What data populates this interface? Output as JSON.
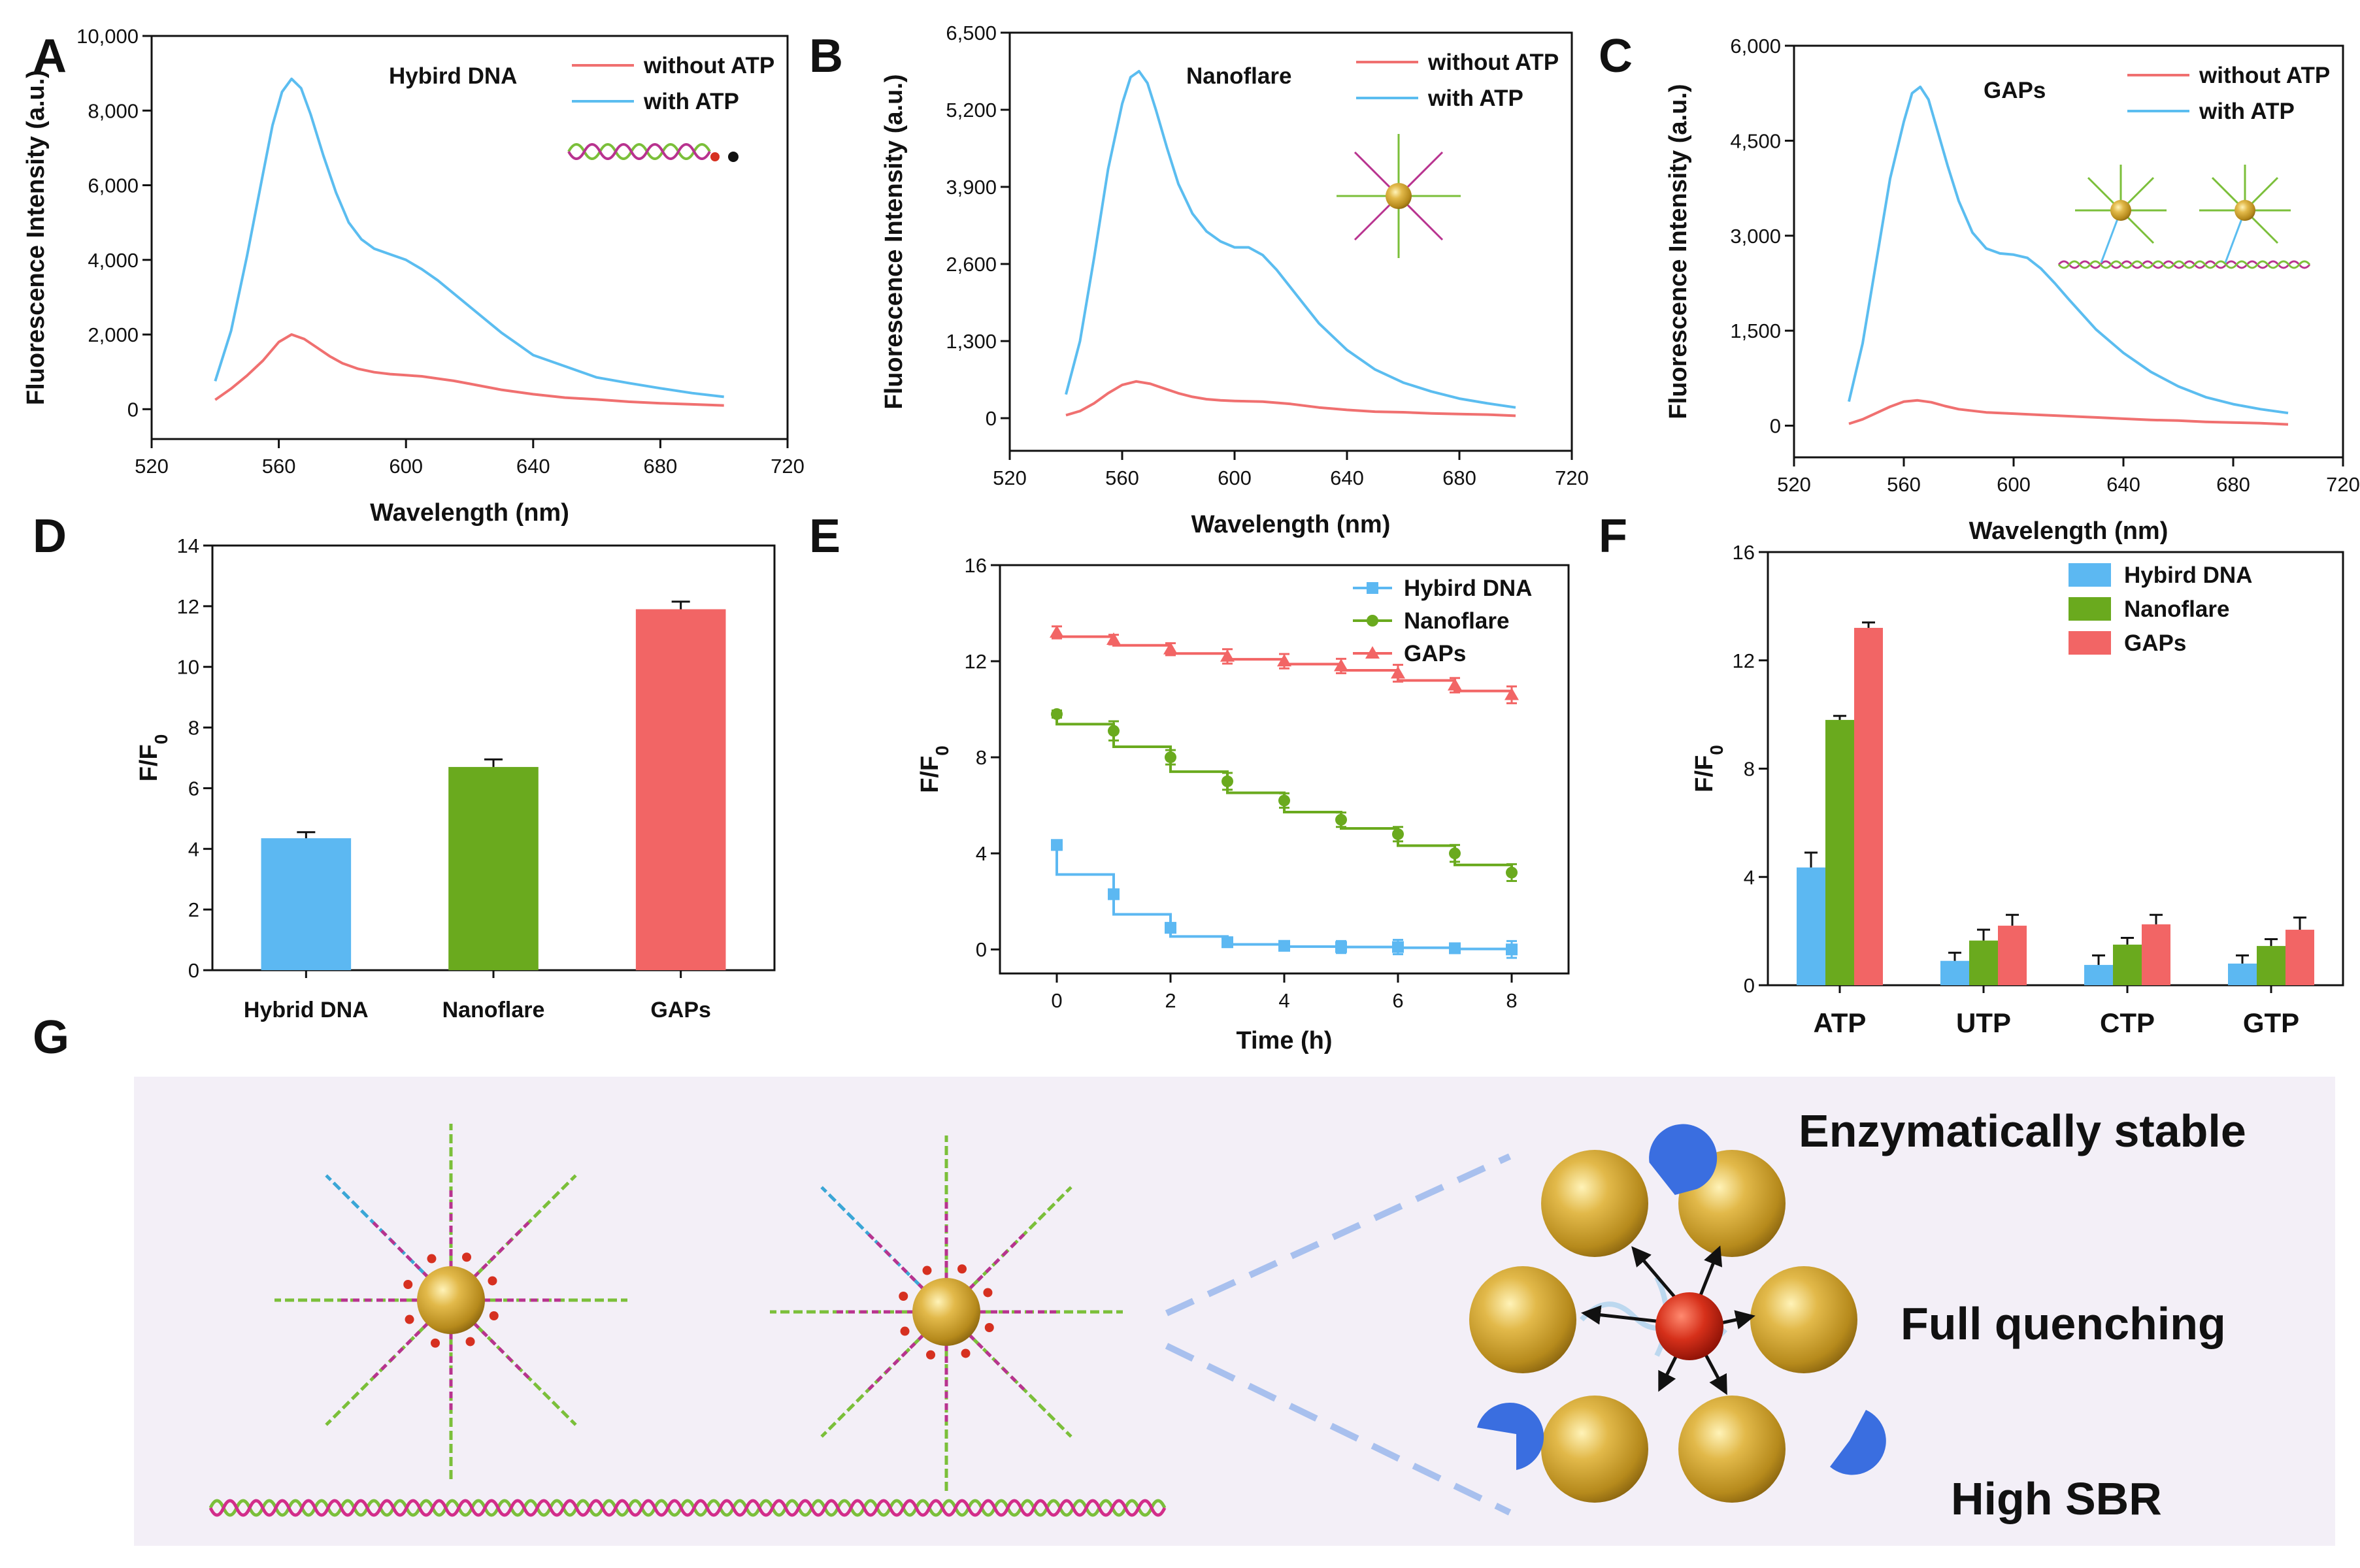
{
  "panels": {
    "A": {
      "letter": "A",
      "label": "Hybird DNA"
    },
    "B": {
      "letter": "B",
      "label": "Nanoflare"
    },
    "C": {
      "letter": "C",
      "label": "GAPs"
    },
    "D": {
      "letter": "D"
    },
    "E": {
      "letter": "E"
    },
    "F": {
      "letter": "F"
    },
    "G": {
      "letter": "G"
    }
  },
  "schematic": {
    "feature_1": "Enzymatically stable",
    "feature_2": "Full quenching",
    "feature_3": "High SBR"
  },
  "colors": {
    "without_atp": "#f07070",
    "with_atp": "#5bbdf0",
    "hybrid_dna": "#5cb8f2",
    "nanoflare": "#6aaa1e",
    "gaps": "#f26565",
    "gold": "#c8a030",
    "bg_panel_g": "#f3eff7"
  },
  "chart_data": [
    {
      "id": "A",
      "type": "line",
      "xlabel": "Wavelength (nm)",
      "ylabel": "Fluorescence Intensity (a.u.)",
      "xlim": [
        520,
        720
      ],
      "ylim": [
        -800,
        10000
      ],
      "xticks": [
        520,
        560,
        600,
        640,
        680,
        720
      ],
      "xtick_labels": [
        "520",
        "560",
        "600",
        "640",
        "680",
        "720"
      ],
      "yticks": [
        0,
        2000,
        4000,
        6000,
        8000,
        10000
      ],
      "ytick_labels": [
        "0",
        "2,000",
        "4,000",
        "6,000",
        "8,000",
        "10,000"
      ],
      "legend_position": "top-right",
      "series": [
        {
          "name": "without ATP",
          "color": "#f07070",
          "x": [
            540,
            545,
            550,
            555,
            560,
            564,
            568,
            572,
            576,
            580,
            585,
            590,
            595,
            600,
            605,
            610,
            615,
            620,
            625,
            630,
            640,
            650,
            660,
            670,
            680,
            690,
            700
          ],
          "y": [
            250,
            550,
            900,
            1300,
            1800,
            2000,
            1880,
            1650,
            1420,
            1230,
            1080,
            990,
            940,
            910,
            880,
            820,
            760,
            680,
            600,
            520,
            400,
            310,
            260,
            200,
            160,
            130,
            100
          ]
        },
        {
          "name": "with ATP",
          "color": "#5bbdf0",
          "x": [
            540,
            545,
            550,
            555,
            558,
            561,
            564,
            567,
            570,
            574,
            578,
            582,
            586,
            590,
            595,
            600,
            605,
            610,
            615,
            620,
            625,
            630,
            635,
            640,
            650,
            660,
            670,
            680,
            690,
            700
          ],
          "y": [
            750,
            2100,
            4100,
            6300,
            7600,
            8500,
            8850,
            8600,
            7900,
            6800,
            5800,
            5000,
            4550,
            4300,
            4150,
            4000,
            3750,
            3450,
            3100,
            2750,
            2400,
            2050,
            1750,
            1450,
            1150,
            850,
            700,
            560,
            430,
            330
          ]
        }
      ]
    },
    {
      "id": "B",
      "type": "line",
      "xlabel": "Wavelength (nm)",
      "ylabel": "Fluorescence Intensity (a.u.)",
      "xlim": [
        520,
        720
      ],
      "ylim": [
        -550,
        6500
      ],
      "xticks": [
        520,
        560,
        600,
        640,
        680,
        720
      ],
      "xtick_labels": [
        "520",
        "560",
        "600",
        "640",
        "680",
        "720"
      ],
      "yticks": [
        0,
        1300,
        2600,
        3900,
        5200,
        6500
      ],
      "ytick_labels": [
        "0",
        "1,300",
        "2,600",
        "3,900",
        "5,200",
        "6,500"
      ],
      "legend_position": "top-right",
      "series": [
        {
          "name": "without ATP",
          "color": "#f07070",
          "x": [
            540,
            545,
            550,
            555,
            560,
            565,
            570,
            575,
            580,
            585,
            590,
            595,
            600,
            610,
            620,
            630,
            640,
            650,
            660,
            670,
            680,
            690,
            700
          ],
          "y": [
            50,
            120,
            250,
            420,
            560,
            620,
            580,
            500,
            420,
            360,
            320,
            300,
            290,
            280,
            240,
            180,
            140,
            110,
            100,
            80,
            70,
            60,
            40
          ]
        },
        {
          "name": "with ATP",
          "color": "#5bbdf0",
          "x": [
            540,
            545,
            550,
            555,
            560,
            563,
            566,
            569,
            572,
            576,
            580,
            585,
            590,
            595,
            600,
            605,
            610,
            615,
            620,
            625,
            630,
            640,
            650,
            660,
            670,
            680,
            690,
            700
          ],
          "y": [
            400,
            1300,
            2700,
            4200,
            5300,
            5750,
            5850,
            5650,
            5200,
            4550,
            3950,
            3450,
            3150,
            2980,
            2880,
            2880,
            2750,
            2500,
            2200,
            1900,
            1600,
            1150,
            820,
            600,
            450,
            330,
            250,
            180
          ]
        }
      ]
    },
    {
      "id": "C",
      "type": "line",
      "xlabel": "Wavelength (nm)",
      "ylabel": "Fluorescence Intensity (a.u.)",
      "xlim": [
        520,
        720
      ],
      "ylim": [
        -500,
        6000
      ],
      "xticks": [
        520,
        560,
        600,
        640,
        680,
        720
      ],
      "xtick_labels": [
        "520",
        "560",
        "600",
        "640",
        "680",
        "720"
      ],
      "yticks": [
        0,
        1500,
        3000,
        4500,
        6000
      ],
      "ytick_labels": [
        "0",
        "1,500",
        "3,000",
        "4,500",
        "6,000"
      ],
      "legend_position": "top-right",
      "series": [
        {
          "name": "without ATP",
          "color": "#f07070",
          "x": [
            540,
            545,
            550,
            555,
            560,
            565,
            570,
            575,
            580,
            590,
            600,
            610,
            620,
            630,
            640,
            650,
            660,
            670,
            680,
            690,
            700
          ],
          "y": [
            30,
            100,
            200,
            300,
            380,
            400,
            370,
            310,
            260,
            210,
            190,
            170,
            150,
            130,
            110,
            90,
            80,
            60,
            50,
            40,
            20
          ]
        },
        {
          "name": "with ATP",
          "color": "#5bbdf0",
          "x": [
            540,
            545,
            550,
            555,
            560,
            563,
            566,
            569,
            572,
            576,
            580,
            585,
            590,
            595,
            600,
            605,
            610,
            615,
            620,
            630,
            640,
            650,
            660,
            670,
            680,
            690,
            700
          ],
          "y": [
            380,
            1300,
            2600,
            3900,
            4800,
            5250,
            5350,
            5150,
            4700,
            4100,
            3550,
            3050,
            2800,
            2720,
            2700,
            2650,
            2480,
            2250,
            2000,
            1520,
            1150,
            850,
            620,
            450,
            340,
            260,
            200
          ]
        }
      ]
    },
    {
      "id": "D",
      "type": "bar",
      "xlabel": "",
      "ylabel": "F/F0",
      "ylabel_main": "F/F",
      "ylabel_sub": "0",
      "ylim": [
        0,
        14
      ],
      "yticks": [
        0,
        2,
        4,
        6,
        8,
        10,
        12,
        14
      ],
      "ytick_labels": [
        "0",
        "2",
        "4",
        "6",
        "8",
        "10",
        "12",
        "14"
      ],
      "categories": [
        "Hybrid DNA",
        "Nanoflare",
        "GAPs"
      ],
      "values": [
        4.35,
        6.7,
        11.9
      ],
      "errors": [
        0.2,
        0.25,
        0.25
      ],
      "colors": [
        "#5cb8f2",
        "#6aaa1e",
        "#f26565"
      ]
    },
    {
      "id": "E",
      "type": "line",
      "xlabel": "Time (h)",
      "ylabel": "F/F0",
      "ylabel_main": "F/F",
      "ylabel_sub": "0",
      "xlim": [
        -1,
        9
      ],
      "ylim": [
        -1,
        16
      ],
      "xticks": [
        0,
        2,
        4,
        6,
        8
      ],
      "xtick_labels": [
        "0",
        "2",
        "4",
        "6",
        "8"
      ],
      "yticks": [
        0,
        4,
        8,
        12,
        16
      ],
      "ytick_labels": [
        "0",
        "4",
        "8",
        "12",
        "16"
      ],
      "legend_position": "top-right",
      "series": [
        {
          "name": "Hybird DNA",
          "color": "#5cb8f2",
          "marker": "square",
          "x": [
            0,
            1,
            2,
            3,
            4,
            5,
            6,
            7,
            8
          ],
          "y": [
            4.35,
            2.3,
            0.9,
            0.3,
            0.15,
            0.1,
            0.1,
            0.05,
            0.0
          ],
          "errors": [
            0.2,
            0.15,
            0.2,
            0.2,
            0.15,
            0.25,
            0.3,
            0.2,
            0.35
          ]
        },
        {
          "name": "Nanoflare",
          "color": "#6aaa1e",
          "marker": "circle",
          "x": [
            0,
            1,
            2,
            3,
            4,
            5,
            6,
            7,
            8
          ],
          "y": [
            9.8,
            9.1,
            8.0,
            7.0,
            6.2,
            5.4,
            4.8,
            4.0,
            3.2
          ],
          "errors": [
            0.15,
            0.4,
            0.3,
            0.35,
            0.3,
            0.3,
            0.3,
            0.35,
            0.35
          ]
        },
        {
          "name": "GAPs",
          "color": "#f26565",
          "marker": "triangle",
          "x": [
            0,
            1,
            2,
            3,
            4,
            5,
            6,
            7,
            8
          ],
          "y": [
            13.2,
            12.9,
            12.5,
            12.2,
            12.0,
            11.8,
            11.5,
            11.0,
            10.6
          ],
          "errors": [
            0.25,
            0.2,
            0.25,
            0.3,
            0.3,
            0.3,
            0.35,
            0.3,
            0.35
          ]
        }
      ]
    },
    {
      "id": "F",
      "type": "bar",
      "xlabel": "",
      "ylabel": "F/F0",
      "ylabel_main": "F/F",
      "ylabel_sub": "0",
      "ylim": [
        0,
        16
      ],
      "yticks": [
        0,
        4,
        8,
        12,
        16
      ],
      "ytick_labels": [
        "0",
        "4",
        "8",
        "12",
        "16"
      ],
      "legend_position": "top-right",
      "categories": [
        "ATP",
        "UTP",
        "CTP",
        "GTP"
      ],
      "series": [
        {
          "name": "Hybird DNA",
          "color": "#5cb8f2",
          "values": [
            4.35,
            0.9,
            0.75,
            0.8
          ],
          "errors": [
            0.55,
            0.3,
            0.35,
            0.3
          ]
        },
        {
          "name": "Nanoflare",
          "color": "#6aaa1e",
          "values": [
            9.8,
            1.65,
            1.5,
            1.45
          ],
          "errors": [
            0.15,
            0.4,
            0.25,
            0.25
          ]
        },
        {
          "name": "GAPs",
          "color": "#f26565",
          "values": [
            13.2,
            2.2,
            2.25,
            2.05
          ],
          "errors": [
            0.2,
            0.4,
            0.35,
            0.45
          ]
        }
      ]
    }
  ]
}
